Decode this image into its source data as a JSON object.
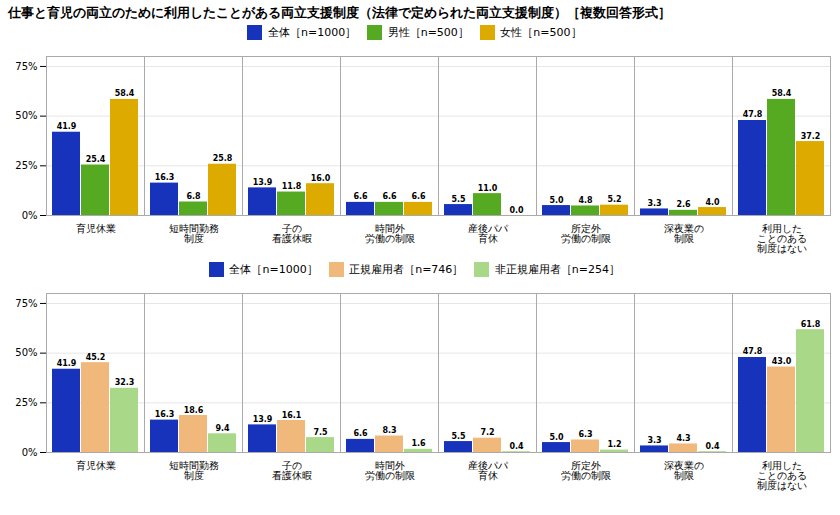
{
  "chart_data": [
    {
      "type": "bar",
      "title": "仕事と育児の両立のために利用したことがある両立支援制度（法律で定められた両立支援制度）［複数回答形式］",
      "categories": [
        "育児休業",
        "短時間勤務\n制度",
        "子の\n看護休暇",
        "時間外\n労働の制限",
        "産後パパ\n育休",
        "所定外\n労働の制限",
        "深夜業の\n制限",
        "利用した\nことのある\n制度はない"
      ],
      "series": [
        {
          "name": "全体［n=1000］",
          "color": "#1833bb",
          "values": [
            41.9,
            16.3,
            13.9,
            6.6,
            5.5,
            5.0,
            3.3,
            47.8
          ],
          "value_labels": [
            "41.9",
            "16.3",
            "13.9",
            "6.6",
            "5.5",
            "5.0",
            "3.3",
            "47.8"
          ]
        },
        {
          "name": "男性［n=500］",
          "color": "#55aa22",
          "values": [
            25.4,
            6.8,
            11.8,
            6.6,
            11.0,
            4.8,
            2.6,
            58.4
          ],
          "value_labels": [
            "25.4",
            "6.8",
            "11.8",
            "6.6",
            "11.0",
            "4.8",
            "2.6",
            "58.4"
          ]
        },
        {
          "name": "女性［n=500］",
          "color": "#ddaa00",
          "values": [
            58.4,
            25.8,
            16.0,
            6.6,
            0.0,
            5.2,
            4.0,
            37.2
          ],
          "value_labels": [
            "58.4",
            "25.8",
            "16.0",
            "6.6",
            "0.0",
            "5.2",
            "4.0",
            "37.2"
          ]
        }
      ],
      "ylim": [
        0,
        80
      ],
      "yticks": [
        {
          "value": 0,
          "label": "0%"
        },
        {
          "value": 25,
          "label": "25%"
        },
        {
          "value": 50,
          "label": "50%"
        },
        {
          "value": 75,
          "label": "75%"
        }
      ],
      "grid": true,
      "data_labels": true,
      "legend": "top"
    },
    {
      "type": "bar",
      "categories": [
        "育児休業",
        "短時間勤務\n制度",
        "子の\n看護休暇",
        "時間外\n労働の制限",
        "産後パパ\n育休",
        "所定外\n労働の制限",
        "深夜業の\n制限",
        "利用した\nことのある\n制度はない"
      ],
      "series": [
        {
          "name": "全体［n=1000］",
          "color": "#1833bb",
          "values": [
            41.9,
            16.3,
            13.9,
            6.6,
            5.5,
            5.0,
            3.3,
            47.8
          ],
          "value_labels": [
            "41.9",
            "16.3",
            "13.9",
            "6.6",
            "5.5",
            "5.0",
            "3.3",
            "47.8"
          ]
        },
        {
          "name": "正規雇用者［n=746］",
          "color": "#f0b87a",
          "values": [
            45.2,
            18.6,
            16.1,
            8.3,
            7.2,
            6.3,
            4.3,
            43.0
          ],
          "value_labels": [
            "45.2",
            "18.6",
            "16.1",
            "8.3",
            "7.2",
            "6.3",
            "4.3",
            "43.0"
          ]
        },
        {
          "name": "非正規雇用者［n=254］",
          "color": "#a8d888",
          "values": [
            32.3,
            9.4,
            7.5,
            1.6,
            0.4,
            1.2,
            0.4,
            61.8
          ],
          "value_labels": [
            "32.3",
            "9.4",
            "7.5",
            "1.6",
            "0.4",
            "1.2",
            "0.4",
            "61.8"
          ]
        }
      ],
      "ylim": [
        0,
        80
      ],
      "yticks": [
        {
          "value": 0,
          "label": "0%"
        },
        {
          "value": 25,
          "label": "25%"
        },
        {
          "value": 50,
          "label": "50%"
        },
        {
          "value": 75,
          "label": "75%"
        }
      ],
      "grid": true,
      "data_labels": true,
      "legend": "top"
    }
  ]
}
